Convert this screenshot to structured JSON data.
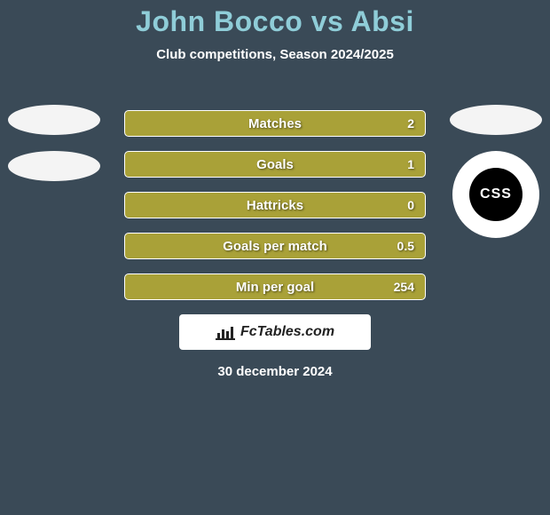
{
  "background_color": "#3a4a57",
  "title": {
    "text": "John Bocco vs Absi",
    "color": "#8fcdd8",
    "fontsize": 32
  },
  "subtitle": {
    "text": "Club competitions, Season 2024/2025",
    "color": "#ffffff",
    "fontsize": 15
  },
  "left_player": {
    "ellipses": [
      {
        "color": "#f4f4f4"
      },
      {
        "color": "#f4f4f4"
      }
    ]
  },
  "right_player": {
    "ellipses": [
      {
        "color": "#f4f4f4"
      }
    ],
    "badge": {
      "outer_bg": "#ffffff",
      "inner_bg": "#000000",
      "inner_text": "CSS",
      "inner_text_color": "#ffffff",
      "inner_fontsize": 16,
      "arc_text_top": "",
      "arc_text_bottom": ""
    }
  },
  "bars": {
    "bar_bg": "#a9a138",
    "bar_border": "#ffffff",
    "text_color": "#ffffff",
    "label_fontsize": 15,
    "value_fontsize": 14,
    "rows": [
      {
        "label": "Matches",
        "left": "",
        "right": "2"
      },
      {
        "label": "Goals",
        "left": "",
        "right": "1"
      },
      {
        "label": "Hattricks",
        "left": "",
        "right": "0"
      },
      {
        "label": "Goals per match",
        "left": "",
        "right": "0.5"
      },
      {
        "label": "Min per goal",
        "left": "",
        "right": "254"
      }
    ]
  },
  "watermark": {
    "bg": "#ffffff",
    "text": "FcTables.com",
    "text_color": "#222222",
    "fontsize": 16,
    "chart_color": "#222222"
  },
  "date": {
    "text": "30 december 2024",
    "color": "#ffffff",
    "fontsize": 15
  }
}
